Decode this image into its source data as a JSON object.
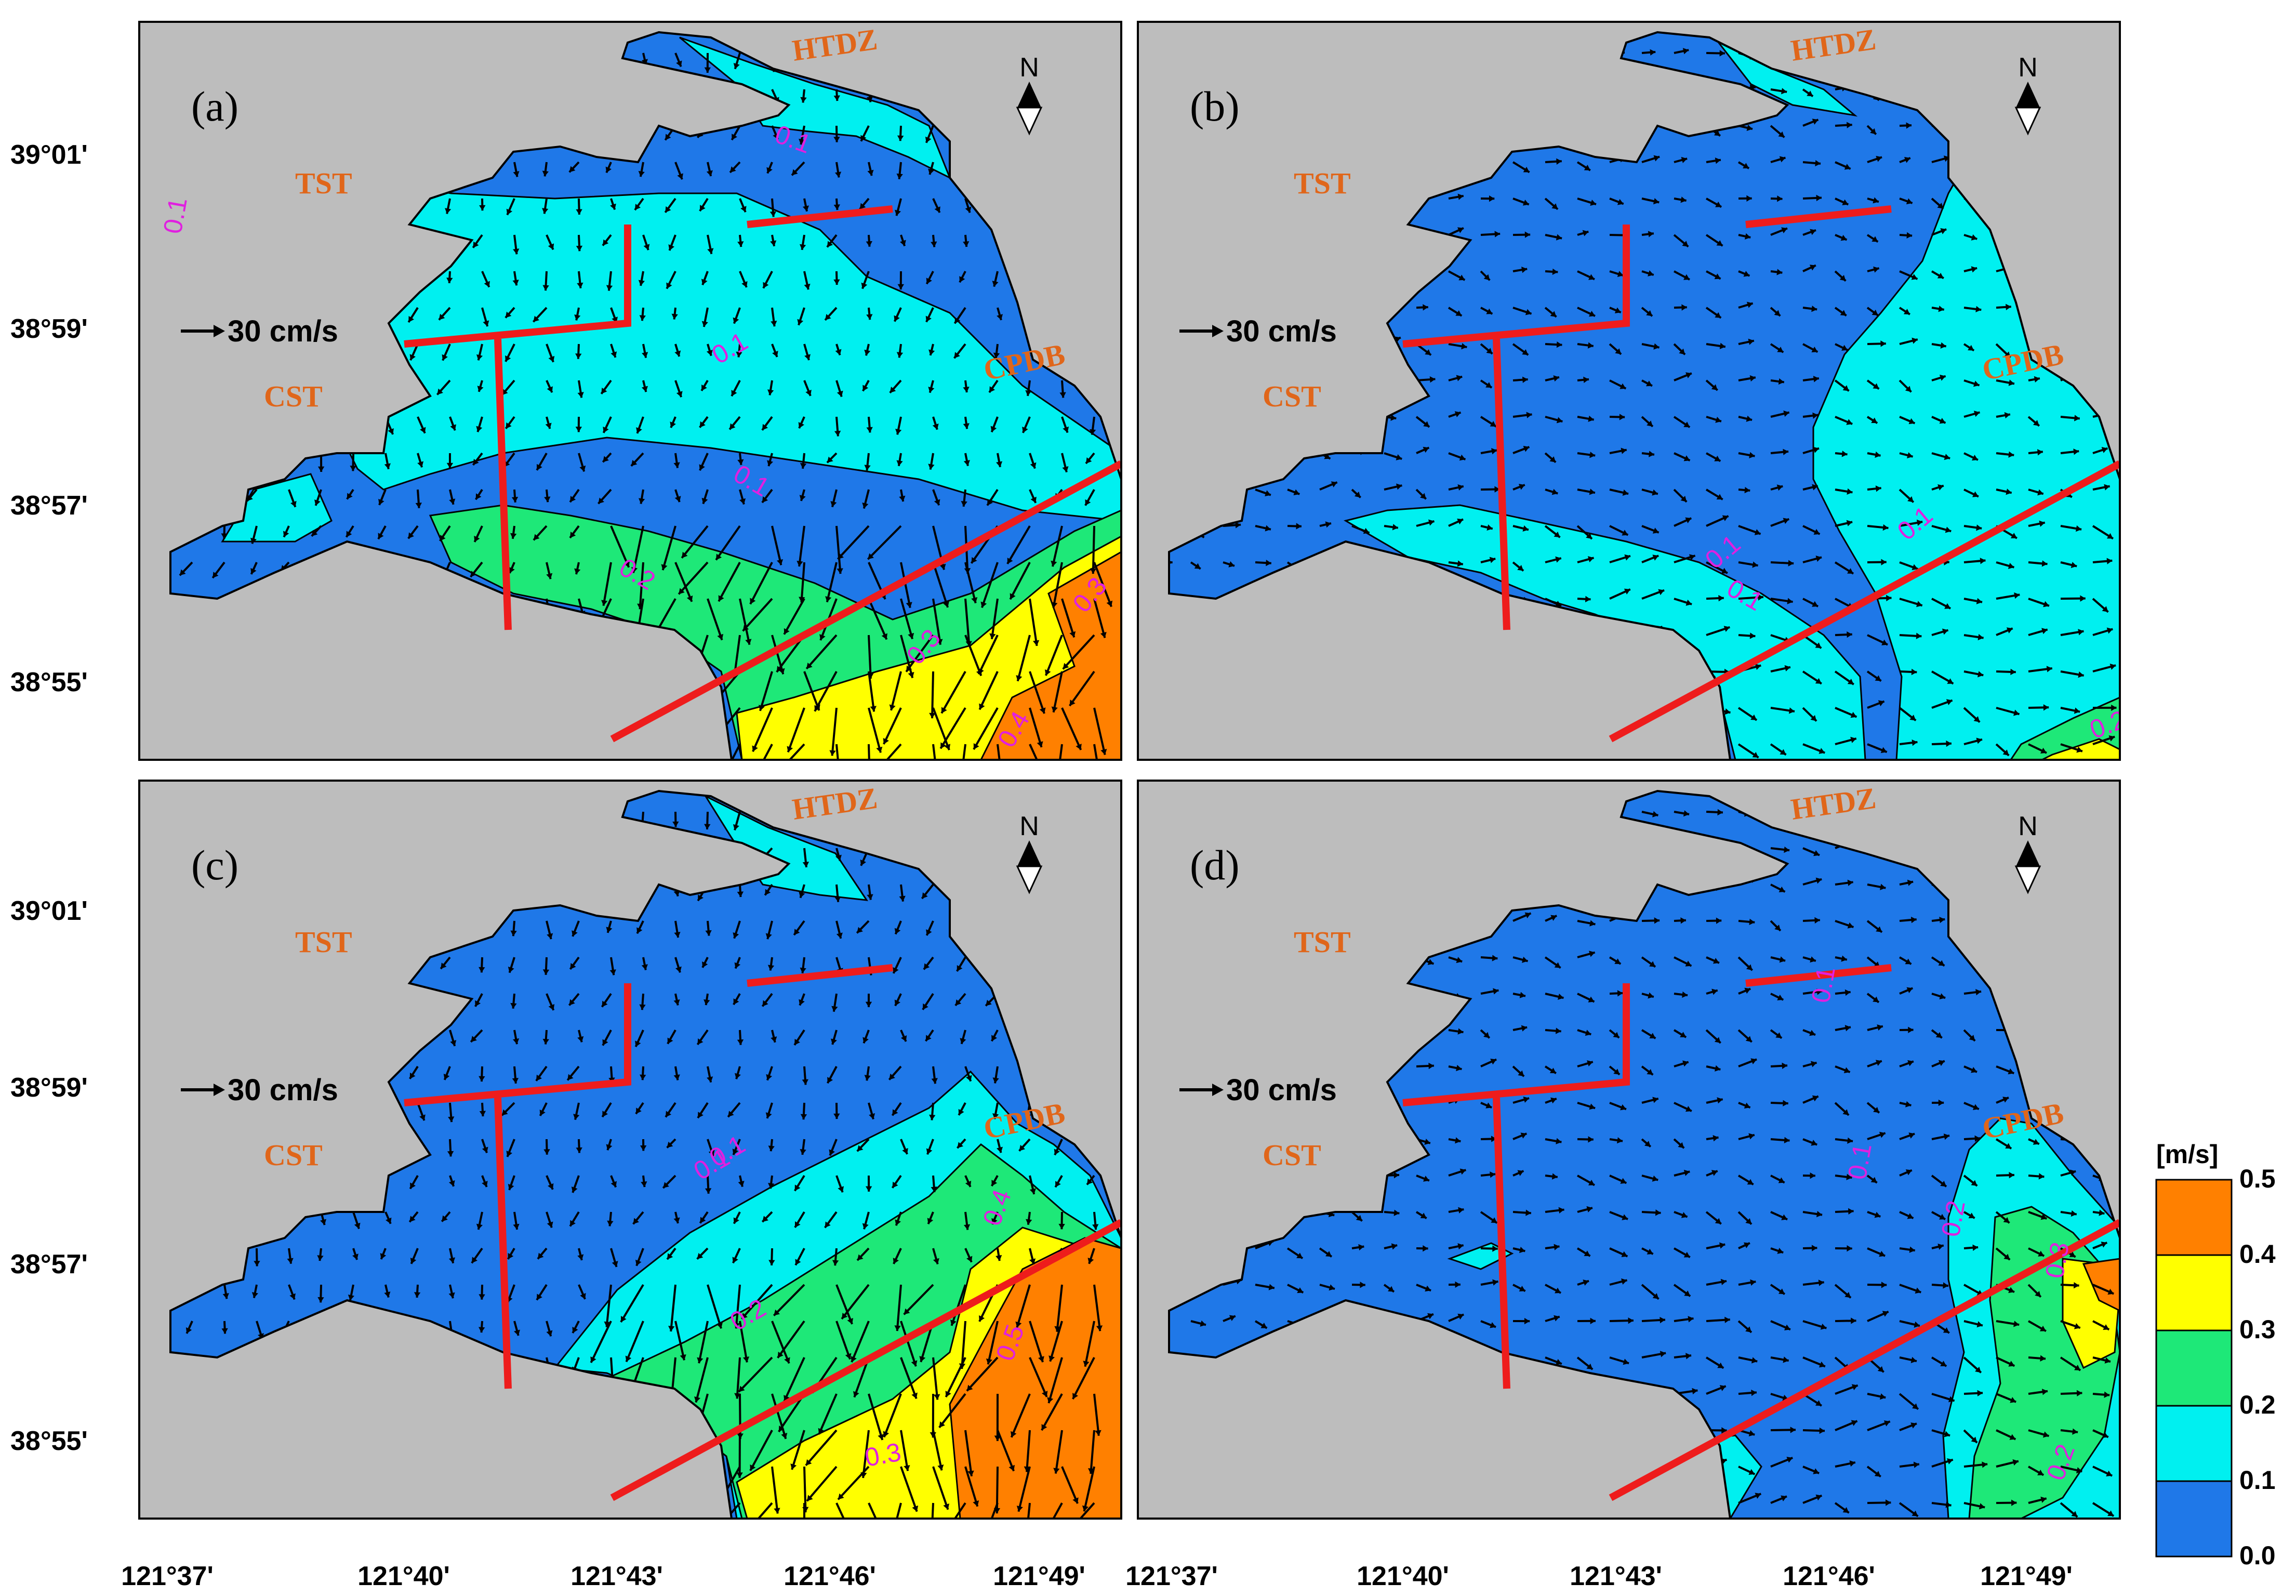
{
  "x_ticks": [
    "121°37'",
    "121°40'",
    "121°43'",
    "121°46'",
    "121°49'"
  ],
  "y_ticks": [
    "39°01'",
    "38°59'",
    "38°57'",
    "38°55'"
  ],
  "scale_label": "30 cm/s",
  "north_label": "N",
  "places": {
    "htdz": "HTDZ",
    "tst": "TST",
    "cst": "CST",
    "cpdb": "CPDB"
  },
  "colorbar": {
    "unit": "[m/s]",
    "ticks": [
      "0.5",
      "0.4",
      "0.3",
      "0.2",
      "0.1",
      "0.0"
    ],
    "colors": [
      "#1f78e8",
      "#00f0f0",
      "#1ee878",
      "#ffff00",
      "#ff8000"
    ]
  },
  "colors": {
    "land": "#bdbdbd",
    "boundary_line": "#ee1c1c",
    "contour_label": "#e020e0",
    "place_label": "#e0661a"
  },
  "panels": [
    {
      "label": "(a)",
      "contours": [
        "0.1",
        "0.1",
        "0.1",
        "0.1",
        "0.2",
        "0.3",
        "0.3",
        "0.4"
      ]
    },
    {
      "label": "(b)",
      "contours": [
        "0.1",
        "0.1",
        "0.1",
        "0.2"
      ]
    },
    {
      "label": "(c)",
      "contours": [
        "0.1",
        "0.1",
        "0.2",
        "0.3",
        "0.4",
        "0.5"
      ]
    },
    {
      "label": "(d)",
      "contours": [
        "0.1",
        "0.1",
        "0.2",
        "0.3",
        "0.2"
      ]
    }
  ]
}
